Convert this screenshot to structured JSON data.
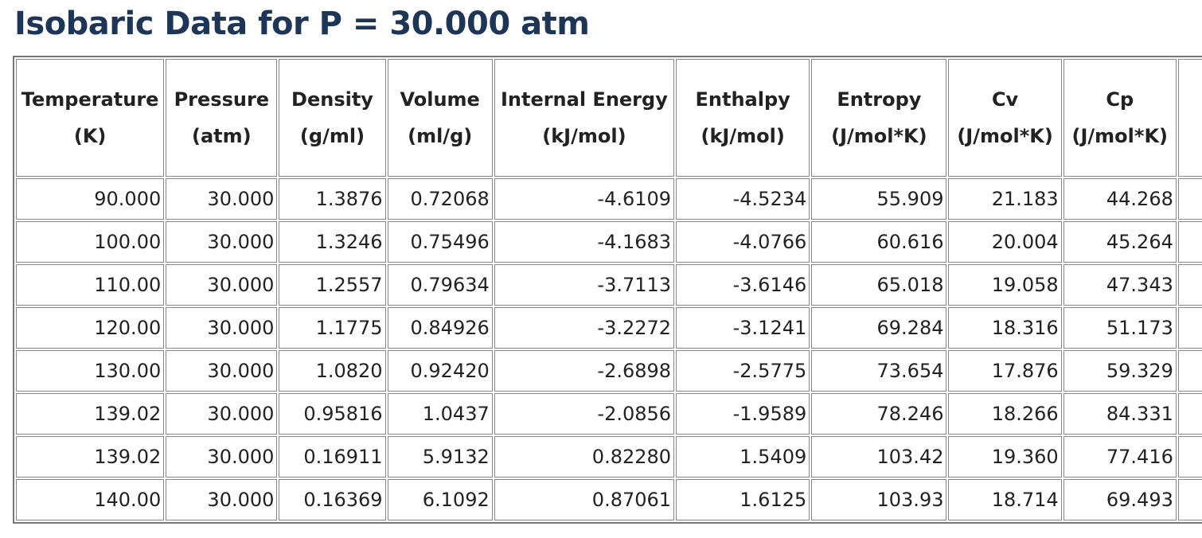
{
  "page": {
    "title": "Isobaric Data for P = 30.000 atm"
  },
  "table": {
    "columns": [
      {
        "name": "Temperature",
        "unit": "(K)"
      },
      {
        "name": "Pressure",
        "unit": "(atm)"
      },
      {
        "name": "Density",
        "unit": "(g/ml)"
      },
      {
        "name": "Volume",
        "unit": "(ml/g)"
      },
      {
        "name": "Internal Energy",
        "unit": "(kJ/mol)"
      },
      {
        "name": "Enthalpy",
        "unit": "(kJ/mol)"
      },
      {
        "name": "Entropy",
        "unit": "(J/mol*K)"
      },
      {
        "name": "Cv",
        "unit": "(J/mol*K)"
      },
      {
        "name": "Cp",
        "unit": "(J/mol*K)"
      },
      {
        "name": "",
        "unit": ""
      }
    ],
    "rows": [
      [
        "90.000",
        "30.000",
        "1.3876",
        "0.72068",
        "-4.6109",
        "-4.5234",
        "55.909",
        "21.183",
        "44.268",
        ""
      ],
      [
        "100.00",
        "30.000",
        "1.3246",
        "0.75496",
        "-4.1683",
        "-4.0766",
        "60.616",
        "20.004",
        "45.264",
        ""
      ],
      [
        "110.00",
        "30.000",
        "1.2557",
        "0.79634",
        "-3.7113",
        "-3.6146",
        "65.018",
        "19.058",
        "47.343",
        ""
      ],
      [
        "120.00",
        "30.000",
        "1.1775",
        "0.84926",
        "-3.2272",
        "-3.1241",
        "69.284",
        "18.316",
        "51.173",
        ""
      ],
      [
        "130.00",
        "30.000",
        "1.0820",
        "0.92420",
        "-2.6898",
        "-2.5775",
        "73.654",
        "17.876",
        "59.329",
        ""
      ],
      [
        "139.02",
        "30.000",
        "0.95816",
        "1.0437",
        "-2.0856",
        "-1.9589",
        "78.246",
        "18.266",
        "84.331",
        ""
      ],
      [
        "139.02",
        "30.000",
        "0.16911",
        "5.9132",
        "0.82280",
        "1.5409",
        "103.42",
        "19.360",
        "77.416",
        ""
      ],
      [
        "140.00",
        "30.000",
        "0.16369",
        "6.1092",
        "0.87061",
        "1.6125",
        "103.93",
        "18.714",
        "69.493",
        ""
      ]
    ]
  }
}
